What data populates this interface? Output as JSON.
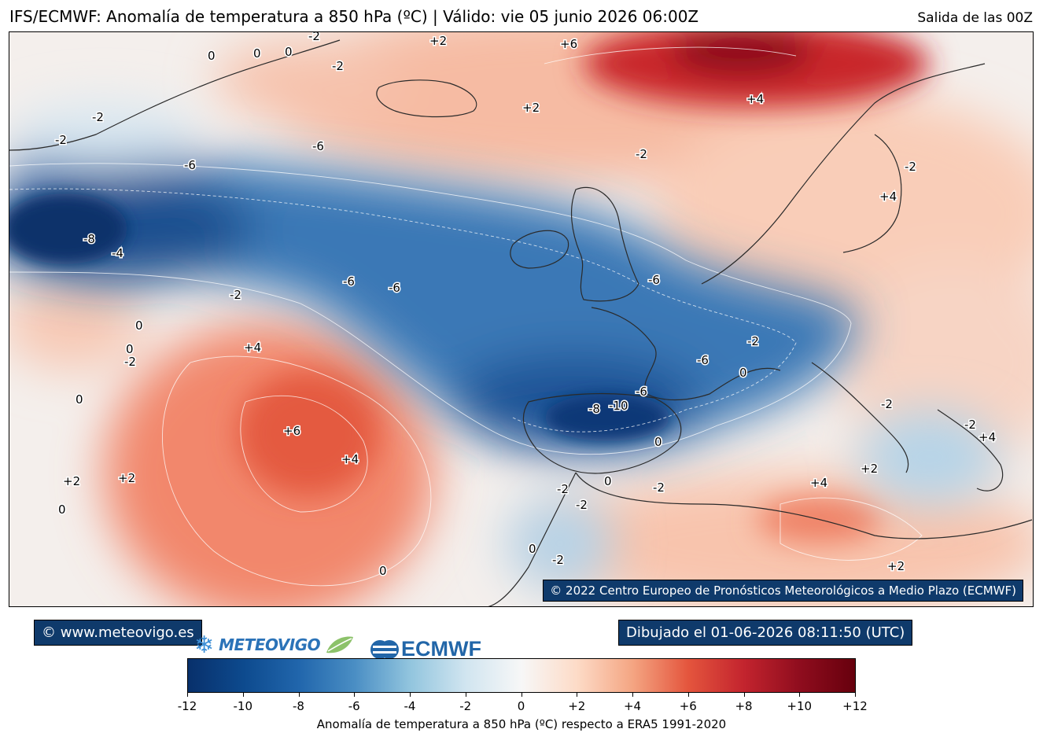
{
  "header": {
    "title": "IFS/ECMWF: Anomalía de temperatura a 850 hPa (ºC) | Válido: vie 05 junio 2026 06:00Z",
    "run": "Salida de las 00Z"
  },
  "map": {
    "copyright": "© 2022 Centro Europeo de Pronósticos Meteorológicos a Medio Plazo (ECMWF)",
    "contour_labels": [
      "+2",
      "+6",
      "0",
      "0",
      "0",
      "-2",
      "-2",
      "-2",
      "+2",
      "+4",
      "-6",
      "-6",
      "-2",
      "-2",
      "-8",
      "-4",
      "-6",
      "-6",
      "-2",
      "0",
      "0",
      "-2",
      "+4",
      "0",
      "+6",
      "+4",
      "+2",
      "+2",
      "0",
      "-6",
      "-6",
      "-2",
      "0",
      "-8",
      "-10",
      "-6",
      "0",
      "-2",
      "0",
      "-2",
      "-2",
      "0",
      "-2",
      "0",
      "-2",
      "+4",
      "+2",
      "+2",
      "-2",
      "+4",
      "+4",
      "-2"
    ]
  },
  "footer": {
    "website": "© www.meteovigo.es",
    "drawn": "Dibujado el 01-06-2026 08:11:50 (UTC)",
    "logo_meteovigo": "METEOVIGO",
    "logo_ecmwf": "ECMWF"
  },
  "colorbar": {
    "ticks": [
      "-12",
      "-10",
      "-8",
      "-6",
      "-4",
      "-2",
      "0",
      "+2",
      "+4",
      "+6",
      "+8",
      "+10",
      "+12"
    ],
    "label": "Anomalía de temperatura a 850 hPa (ºC) respecto a ERA5 1991-2020",
    "colors": [
      "#08306b",
      "#0d4a8e",
      "#2166ac",
      "#4a8ec4",
      "#92c5de",
      "#d1e5f0",
      "#f7f7f7",
      "#fddbc7",
      "#f4a582",
      "#e4553d",
      "#c3242e",
      "#8f0d1e",
      "#67000d"
    ]
  }
}
